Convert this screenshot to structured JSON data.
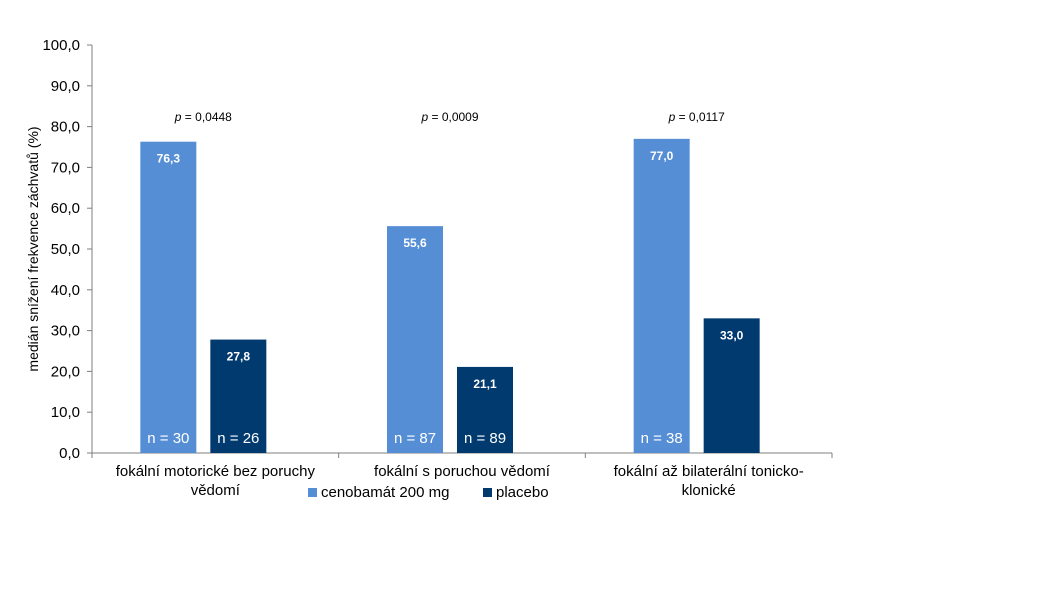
{
  "chart_data": {
    "type": "bar",
    "title": "",
    "ylabel": "medián snížení frekvence záchvatů (%)",
    "xlabel": "",
    "ylim": [
      0,
      100
    ],
    "yticks": [
      "0,0",
      "10,0",
      "20,0",
      "30,0",
      "40,0",
      "50,0",
      "60,0",
      "70,0",
      "80,0",
      "90,0",
      "100,0"
    ],
    "categories": [
      [
        "fokální motorické bez poruchy",
        "vědomí"
      ],
      [
        "fokální s poruchou vědomí"
      ],
      [
        "fokální až bilaterální tonicko-",
        "klonické"
      ]
    ],
    "p_prefix": "p",
    "p_values": [
      "= 0,0448",
      "= 0,0009",
      "= 0,0117"
    ],
    "series": [
      {
        "name": "cenobamát 200 mg",
        "color": "#558ed5",
        "values": [
          76.3,
          55.6,
          77.0
        ],
        "labels": [
          "76,3",
          "55,6",
          "77,0"
        ],
        "n": [
          "n = 30",
          "n = 87",
          "n = 38"
        ]
      },
      {
        "name": "placebo",
        "color": "#003a6f",
        "values": [
          27.8,
          21.1,
          33.0
        ],
        "labels": [
          "27,8",
          "21,1",
          "33,0"
        ],
        "n": [
          "n = 26",
          "n = 89",
          ""
        ]
      }
    ],
    "grid": false,
    "legend_position": "bottom"
  }
}
